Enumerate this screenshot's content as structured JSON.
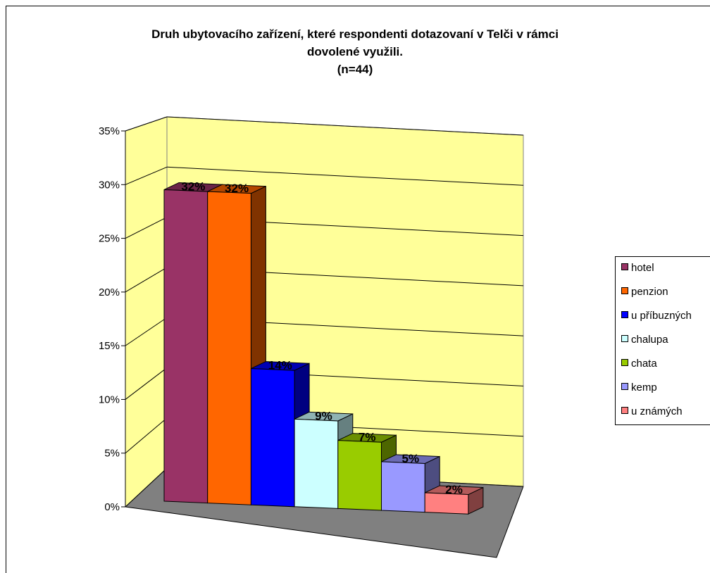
{
  "chart_data": {
    "type": "bar",
    "title_lines": [
      "Druh ubytovacího zařízení, které respondenti dotazovaní v Telči v rámci",
      "dovolené využili.",
      "(n=44)"
    ],
    "categories": [
      "hotel",
      "penzion",
      "u příbuzných",
      "chalupa",
      "chata",
      "kemp",
      "u známých"
    ],
    "values": [
      32,
      32,
      14,
      9,
      7,
      5,
      2
    ],
    "data_labels": [
      "32%",
      "32%",
      "14%",
      "9%",
      "7%",
      "5%",
      "2%"
    ],
    "colors": [
      "#993366",
      "#ff6600",
      "#0000ff",
      "#ccffff",
      "#99cc00",
      "#9999ff",
      "#ff8080"
    ],
    "y_ticks": [
      "0%",
      "5%",
      "10%",
      "15%",
      "20%",
      "25%",
      "30%",
      "35%"
    ],
    "ylim": [
      0,
      35
    ],
    "grid": true,
    "legend_position": "right",
    "wall_color": "#ffff99",
    "floor_color": "#808080"
  }
}
